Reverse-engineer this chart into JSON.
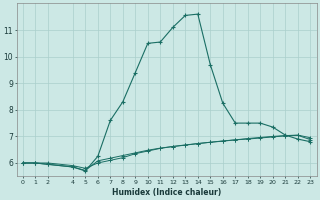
{
  "xlabel": "Humidex (Indice chaleur)",
  "bg_color": "#cce8e5",
  "grid_color": "#aacfcc",
  "line_color": "#1a6e64",
  "line1_x": [
    0,
    1,
    2,
    4,
    5,
    6,
    7,
    8,
    9,
    10,
    11,
    12,
    13,
    14,
    15,
    16,
    17,
    18,
    19,
    20,
    21,
    22,
    23
  ],
  "line1_y": [
    6.0,
    6.0,
    5.95,
    5.85,
    5.7,
    6.25,
    7.6,
    8.3,
    9.4,
    10.5,
    10.55,
    11.1,
    11.55,
    11.6,
    9.7,
    8.25,
    7.5,
    7.5,
    7.5,
    7.35,
    7.05,
    6.9,
    6.8
  ],
  "line2_x": [
    0,
    1,
    2,
    4,
    5,
    6,
    7,
    8,
    9,
    10,
    11,
    12,
    13,
    14,
    15,
    16,
    17,
    18,
    19,
    20,
    21,
    22,
    23
  ],
  "line2_y": [
    6.0,
    6.0,
    6.0,
    5.9,
    5.8,
    6.0,
    6.1,
    6.2,
    6.35,
    6.45,
    6.55,
    6.62,
    6.68,
    6.73,
    6.78,
    6.82,
    6.87,
    6.92,
    6.96,
    7.0,
    7.03,
    7.05,
    6.95
  ],
  "line3_x": [
    0,
    1,
    2,
    4,
    5,
    6,
    7,
    8,
    9,
    10,
    11,
    12,
    13,
    14,
    15,
    16,
    17,
    18,
    19,
    20,
    21,
    22,
    23
  ],
  "line3_y": [
    6.0,
    6.0,
    5.95,
    5.85,
    5.72,
    6.08,
    6.18,
    6.28,
    6.38,
    6.48,
    6.56,
    6.62,
    6.67,
    6.73,
    6.78,
    6.83,
    6.87,
    6.9,
    6.94,
    6.98,
    7.02,
    7.04,
    6.88
  ],
  "ylim": [
    5.5,
    12.0
  ],
  "yticks": [
    6,
    7,
    8,
    9,
    10,
    11
  ],
  "xticks": [
    0,
    1,
    2,
    4,
    5,
    6,
    7,
    8,
    9,
    10,
    11,
    12,
    13,
    14,
    15,
    16,
    17,
    18,
    19,
    20,
    21,
    22,
    23
  ],
  "xlim": [
    -0.5,
    23.5
  ]
}
